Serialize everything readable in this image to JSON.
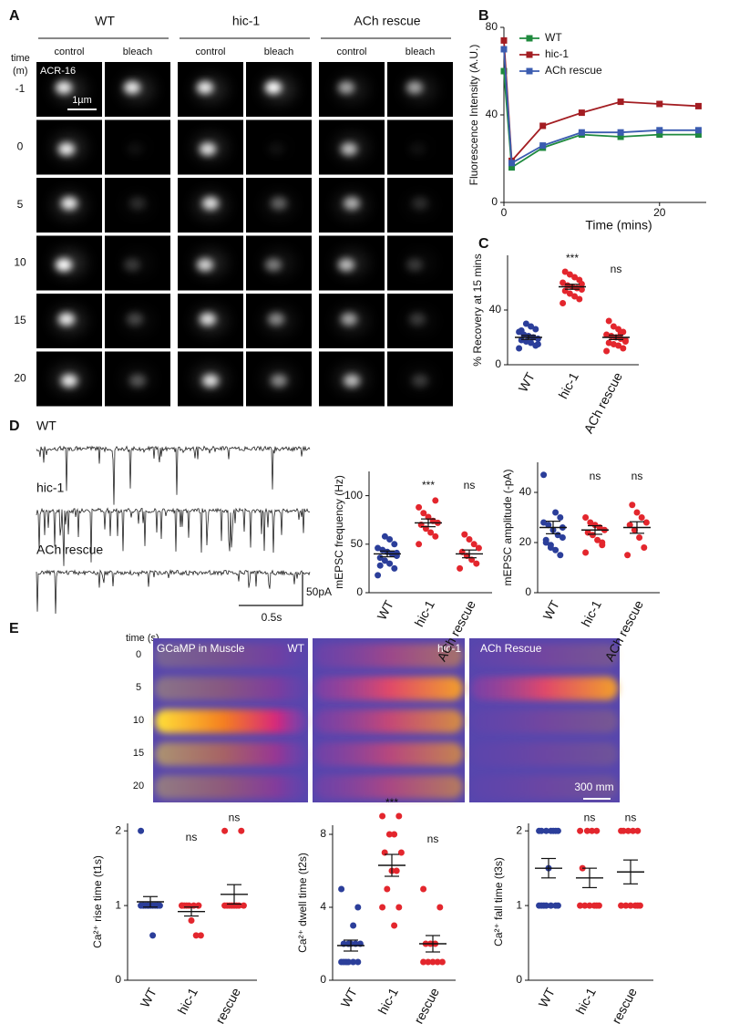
{
  "panel_labels": [
    "A",
    "B",
    "C",
    "D",
    "E"
  ],
  "panel_a": {
    "groups": [
      "WT",
      "hic-1",
      "ACh rescue"
    ],
    "conditions": [
      "control",
      "bleach"
    ],
    "time_label": "time",
    "time_unit": "(m)",
    "times": [
      "-1",
      "0",
      "5",
      "10",
      "15",
      "20"
    ],
    "marker": "ACR-16",
    "scale_bar": "1µm"
  },
  "panel_d_traces": {
    "labels": [
      "WT",
      "hic-1",
      "ACh rescue"
    ],
    "scale_y": "50pA",
    "scale_x": "0.5s"
  },
  "panel_e_images": {
    "time_label": "time (s)",
    "times": [
      "0",
      "5",
      "10",
      "15",
      "20"
    ],
    "reporter": "GCaMP in Muscle",
    "labels": [
      "WT",
      "hic-1",
      "ACh Rescue"
    ],
    "scale_bar": "300 mm"
  },
  "chart_data": [
    {
      "type": "line",
      "x_label": "Time (mins)",
      "y_label": "Fluorescence Intensity (A.U.)",
      "x": [
        0,
        1,
        5,
        10,
        15,
        20,
        25
      ],
      "series": [
        {
          "name": "WT",
          "color": "#1f8a3e",
          "values": [
            60,
            16,
            25,
            31,
            30,
            31,
            31
          ]
        },
        {
          "name": "hic-1",
          "color": "#a31d22",
          "values": [
            74,
            19,
            35,
            41,
            46,
            45,
            44
          ]
        },
        {
          "name": "ACh rescue",
          "color": "#3b5cb0",
          "values": [
            70,
            18,
            26,
            32,
            32,
            33,
            33
          ]
        }
      ],
      "xlim": [
        0,
        26
      ],
      "xticks": [
        0,
        20
      ],
      "ylim": [
        0,
        80
      ],
      "yticks": [
        0,
        40,
        80
      ],
      "legend": "upper right"
    },
    {
      "type": "strip",
      "y_label": "% Recovery at 15 mins",
      "categories": [
        "WT",
        "hic-1",
        "ACh rescue"
      ],
      "colors": [
        "#2b3e9a",
        "#e3262d",
        "#e3262d"
      ],
      "values": [
        [
          12,
          14,
          16,
          17,
          18,
          19,
          20,
          21,
          22,
          24,
          26,
          28,
          30,
          25,
          15
        ],
        [
          45,
          48,
          50,
          52,
          54,
          55,
          56,
          57,
          58,
          60,
          62,
          64,
          66,
          68,
          59
        ],
        [
          10,
          12,
          14,
          15,
          16,
          18,
          19,
          20,
          21,
          22,
          24,
          26,
          28,
          32,
          17,
          23
        ]
      ],
      "means": [
        20,
        57,
        20
      ],
      "sems": [
        1.5,
        1.8,
        1.6
      ],
      "significance": [
        {
          "category": "hic-1",
          "label": "***"
        },
        {
          "category": "ACh rescue",
          "label": "ns"
        }
      ],
      "ylim": [
        0,
        80
      ],
      "yticks": [
        0,
        40
      ]
    },
    {
      "type": "strip",
      "y_label": "mEPSC frequency (Hz)",
      "categories": [
        "WT",
        "hic-1",
        "ACh rescue"
      ],
      "colors": [
        "#2b3e9a",
        "#e3262d",
        "#e3262d"
      ],
      "values": [
        [
          18,
          25,
          30,
          33,
          36,
          38,
          40,
          42,
          44,
          46,
          50,
          55,
          58,
          28,
          41
        ],
        [
          50,
          58,
          62,
          66,
          70,
          72,
          74,
          78,
          82,
          88,
          95
        ],
        [
          25,
          30,
          34,
          38,
          42,
          46,
          50,
          55,
          60
        ]
      ],
      "means": [
        40,
        72,
        40
      ],
      "sems": [
        3,
        4,
        4
      ],
      "significance": [
        {
          "category": "hic-1",
          "label": "***"
        },
        {
          "category": "ACh rescue",
          "label": "ns"
        }
      ],
      "ylim": [
        0,
        125
      ],
      "yticks": [
        0,
        50,
        100
      ]
    },
    {
      "type": "strip",
      "y_label": "mEPSC amplitude (-pA)",
      "categories": [
        "WT",
        "hic-1",
        "ACh rescue"
      ],
      "colors": [
        "#2b3e9a",
        "#e3262d",
        "#e3262d"
      ],
      "values": [
        [
          47,
          15,
          17,
          19,
          20,
          22,
          23,
          25,
          27,
          28,
          30,
          32,
          18,
          21,
          26
        ],
        [
          16,
          19,
          21,
          23,
          24,
          25,
          26,
          27,
          28,
          30,
          20
        ],
        [
          15,
          18,
          22,
          25,
          27,
          28,
          30,
          32,
          35
        ]
      ],
      "means": [
        26,
        25,
        26
      ],
      "sems": [
        2.5,
        1.7,
        2.3
      ],
      "significance": [
        {
          "category": "hic-1",
          "label": "ns"
        },
        {
          "category": "ACh rescue",
          "label": "ns"
        }
      ],
      "ylim": [
        0,
        52
      ],
      "yticks": [
        0,
        20,
        40
      ]
    },
    {
      "type": "strip",
      "y_label": "Ca²⁺ rise time (t1s)",
      "categories": [
        "WT",
        "hic-1",
        "ACh rescue"
      ],
      "colors": [
        "#2b3e9a",
        "#e3262d",
        "#e3262d"
      ],
      "values": [
        [
          2,
          1,
          1,
          1,
          1,
          1,
          1,
          1,
          1,
          1,
          1,
          0.6,
          1,
          1
        ],
        [
          1,
          1,
          1,
          1,
          1,
          0.6,
          0.6,
          0.8,
          1,
          1,
          1
        ],
        [
          2,
          2,
          1,
          1,
          1,
          1,
          1,
          1,
          1,
          1
        ]
      ],
      "means": [
        1.05,
        0.92,
        1.15
      ],
      "sems": [
        0.07,
        0.06,
        0.13
      ],
      "significance": [
        {
          "category": "hic-1",
          "label": "ns"
        },
        {
          "category": "ACh rescue",
          "label": "ns"
        }
      ],
      "ylim": [
        0,
        2.1
      ],
      "yticks": [
        0,
        1,
        2
      ]
    },
    {
      "type": "strip",
      "y_label": "Ca²⁺ dwell time (t2s)",
      "categories": [
        "WT",
        "hic-1",
        "ACh rescue"
      ],
      "colors": [
        "#2b3e9a",
        "#e3262d",
        "#e3262d"
      ],
      "values": [
        [
          5,
          4,
          3,
          2,
          2,
          2,
          2,
          2,
          1,
          1,
          1,
          1,
          1,
          1
        ],
        [
          9,
          9,
          8,
          8,
          7,
          7,
          6,
          6,
          5,
          4,
          4,
          3
        ],
        [
          5,
          4,
          2,
          2,
          2,
          1,
          1,
          1,
          1,
          1
        ]
      ],
      "means": [
        1.9,
        6.3,
        2.0
      ],
      "sems": [
        0.3,
        0.6,
        0.45
      ],
      "significance": [
        {
          "category": "hic-1",
          "label": "***"
        },
        {
          "category": "ACh rescue",
          "label": "ns"
        }
      ],
      "ylim": [
        0,
        8.5
      ],
      "yticks": [
        0,
        4,
        8
      ]
    },
    {
      "type": "strip",
      "y_label": "Ca²⁺ fall time (t3s)",
      "categories": [
        "WT",
        "hic-1",
        "ACh rescue"
      ],
      "colors": [
        "#2b3e9a",
        "#e3262d",
        "#e3262d"
      ],
      "values": [
        [
          2,
          2,
          2,
          2,
          2,
          2,
          2,
          1.5,
          1,
          1,
          1,
          1,
          1,
          1,
          1
        ],
        [
          2,
          2,
          2,
          2,
          1.5,
          1,
          1,
          1,
          1,
          1,
          1
        ],
        [
          2,
          2,
          2,
          2,
          2,
          1,
          1,
          1,
          1,
          1,
          1
        ]
      ],
      "means": [
        1.5,
        1.37,
        1.45
      ],
      "sems": [
        0.13,
        0.13,
        0.16
      ],
      "significance": [
        {
          "category": "hic-1",
          "label": "ns"
        },
        {
          "category": "ACh rescue",
          "label": "ns"
        }
      ],
      "ylim": [
        0,
        2.1
      ],
      "yticks": [
        0,
        1,
        2
      ]
    }
  ]
}
